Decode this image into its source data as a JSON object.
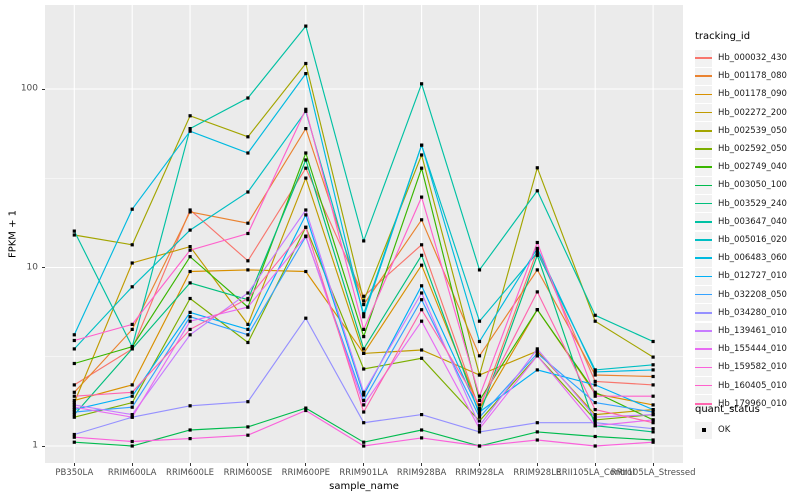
{
  "figure": {
    "y_axis": {
      "title": "FPKM + 1",
      "tick_labels": [
        "1",
        "10",
        "100"
      ]
    },
    "x_axis": {
      "title": "sample_name"
    },
    "legend": {
      "tracking_title": "tracking_id",
      "quant_title": "quant_status",
      "quant_entries": [
        {
          "label": "OK",
          "marker": "black-square"
        }
      ]
    }
  },
  "colors": {
    "panel_background": "#EBEBEB",
    "gridline": "#FFFFFF",
    "axis_text": "#4d4d4d",
    "tick_mark": "#333333",
    "point": "#000000",
    "legend_key_background": "#F2F2F2"
  },
  "chart_data": {
    "type": "line",
    "xlabel": "sample_name",
    "ylabel": "FPKM + 1",
    "yscale": "log10",
    "ylim": [
      1,
      292
    ],
    "y_major_ticks": [
      1,
      10,
      100
    ],
    "y_minor_gridlines": [
      3.162,
      31.62
    ],
    "grid": "white major+minor horizontal, white major vertical per category, on grey panel",
    "legend_position": "right",
    "point_marker": "small black square on every observation (quant_status = OK)",
    "x_categories": [
      "PB350LA",
      "RRIM600LA",
      "RRIM600LE",
      "RRIM600SE",
      "RRIM600PE",
      "RRIM901LA",
      "RRIM928BA",
      "RRIM928LA",
      "RRIM928LE",
      "RRII105LA_Control",
      "RRII105LA_Stressed"
    ],
    "series": [
      {
        "name": "Hb_000032_430",
        "color": "#F8766D",
        "values": [
          2.2,
          3.5,
          21,
          10.9,
          36,
          6.9,
          13.4,
          1.6,
          12.5,
          2.3,
          2.2
        ]
      },
      {
        "name": "Hb_001178_080",
        "color": "#EA8331",
        "values": [
          2.0,
          4.5,
          20.5,
          17.7,
          60,
          6.2,
          18.5,
          3.2,
          9.7,
          2.5,
          2.45
        ]
      },
      {
        "name": "Hb_001178_090",
        "color": "#D89000",
        "values": [
          1.8,
          2.2,
          9.5,
          9.7,
          9.5,
          3.3,
          10.3,
          1.62,
          5.8,
          1.96,
          1.7
        ]
      },
      {
        "name": "Hb_002272_200",
        "color": "#C09B00",
        "values": [
          1.75,
          10.6,
          13.1,
          4.8,
          31.7,
          3.3,
          3.45,
          2.5,
          3.4,
          1.5,
          1.6
        ]
      },
      {
        "name": "Hb_002539_050",
        "color": "#A3A500",
        "values": [
          15.2,
          13.4,
          70.8,
          54,
          139,
          6.5,
          42.7,
          2.5,
          36.2,
          5.0,
          3.15
        ]
      },
      {
        "name": "Hb_002592_050",
        "color": "#7CAE00",
        "values": [
          1.45,
          1.75,
          6.7,
          3.8,
          16.8,
          2.7,
          3.1,
          1.38,
          3.2,
          1.4,
          1.5
        ]
      },
      {
        "name": "Hb_002749_040",
        "color": "#39B600",
        "values": [
          2.9,
          3.6,
          11.5,
          6.0,
          43.8,
          4.1,
          36,
          1.8,
          5.8,
          2.0,
          1.4
        ]
      },
      {
        "name": "Hb_003050_100",
        "color": "#00BB4E",
        "values": [
          1.05,
          1.0,
          1.23,
          1.28,
          1.63,
          1.05,
          1.23,
          1.0,
          1.2,
          1.13,
          1.08
        ]
      },
      {
        "name": "Hb_003529_240",
        "color": "#00BF7D",
        "values": [
          1.5,
          3.5,
          8.2,
          6.6,
          40,
          3.5,
          11.7,
          1.5,
          11.7,
          1.3,
          1.2
        ]
      },
      {
        "name": "Hb_003647_040",
        "color": "#00C1A3",
        "values": [
          16,
          3.6,
          60,
          89,
          225,
          14.1,
          107,
          9.7,
          26.9,
          5.4,
          3.85
        ]
      },
      {
        "name": "Hb_005016_020",
        "color": "#00BFC4",
        "values": [
          3.5,
          7.8,
          16.2,
          26.5,
          75,
          5.5,
          48.5,
          5.0,
          12.1,
          2.67,
          2.85
        ]
      },
      {
        "name": "Hb_006483_060",
        "color": "#00BAE0",
        "values": [
          4.2,
          21.2,
          58,
          43.8,
          122,
          5.3,
          48.5,
          3.85,
          12.8,
          2.6,
          2.67
        ]
      },
      {
        "name": "Hb_012727_010",
        "color": "#00B0F6",
        "values": [
          1.6,
          1.9,
          5.6,
          4.5,
          19.7,
          1.93,
          7.9,
          1.55,
          2.67,
          2.2,
          1.6
        ]
      },
      {
        "name": "Hb_032208_050",
        "color": "#35A2FF",
        "values": [
          1.55,
          1.65,
          5.3,
          4.2,
          14.9,
          1.8,
          6.6,
          1.45,
          3.3,
          1.75,
          1.55
        ]
      },
      {
        "name": "Hb_034280_010",
        "color": "#9590FF",
        "values": [
          1.16,
          1.45,
          1.68,
          1.77,
          5.2,
          1.35,
          1.5,
          1.2,
          1.35,
          1.35,
          1.25
        ]
      },
      {
        "name": "Hb_139461_010",
        "color": "#C77CFF",
        "values": [
          1.7,
          1.5,
          4.2,
          7.2,
          21,
          2.0,
          7.2,
          1.3,
          3.5,
          1.45,
          1.5
        ]
      },
      {
        "name": "Hb_155444_010",
        "color": "#E76BF3",
        "values": [
          1.65,
          1.45,
          5.0,
          6.0,
          15,
          1.7,
          5.0,
          1.25,
          3.2,
          1.3,
          1.4
        ]
      },
      {
        "name": "Hb_159582_010",
        "color": "#FA62DB",
        "values": [
          1.12,
          1.06,
          1.1,
          1.15,
          1.58,
          1.0,
          1.11,
          1.0,
          1.08,
          1.0,
          1.05
        ]
      },
      {
        "name": "Hb_160405_010",
        "color": "#FF61CC",
        "values": [
          3.9,
          4.8,
          12.5,
          15.5,
          77,
          4.5,
          24.8,
          1.9,
          13.8,
          1.9,
          1.9
        ]
      },
      {
        "name": "Hb_179960_010",
        "color": "#FF65AE",
        "values": [
          1.9,
          2.0,
          4.5,
          6.7,
          16.8,
          1.55,
          5.8,
          1.7,
          7.3,
          1.6,
          1.35
        ]
      }
    ]
  }
}
